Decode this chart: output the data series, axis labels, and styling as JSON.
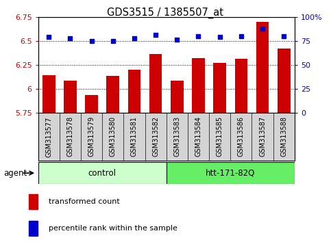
{
  "title": "GDS3515 / 1385507_at",
  "categories": [
    "GSM313577",
    "GSM313578",
    "GSM313579",
    "GSM313580",
    "GSM313581",
    "GSM313582",
    "GSM313583",
    "GSM313584",
    "GSM313585",
    "GSM313586",
    "GSM313587",
    "GSM313588"
  ],
  "bar_values": [
    6.14,
    6.08,
    5.93,
    6.13,
    6.2,
    6.36,
    6.08,
    6.32,
    6.27,
    6.31,
    6.7,
    6.42
  ],
  "scatter_values": [
    79,
    78,
    75,
    75,
    78,
    81,
    76,
    80,
    79,
    80,
    88,
    80
  ],
  "bar_color": "#cc0000",
  "scatter_color": "#0000cc",
  "ylim_left": [
    5.75,
    6.75
  ],
  "ylim_right": [
    0,
    100
  ],
  "yticks_left": [
    5.75,
    6.0,
    6.25,
    6.5,
    6.75
  ],
  "ytick_labels_left": [
    "5.75",
    "6",
    "6.25",
    "6.5",
    "6.75"
  ],
  "yticks_right": [
    0,
    25,
    50,
    75,
    100
  ],
  "ytick_labels_right": [
    "0",
    "25",
    "50",
    "75",
    "100%"
  ],
  "grid_values": [
    6.0,
    6.25,
    6.5
  ],
  "control_label": "control",
  "treatment_label": "htt-171-82Q",
  "agent_label": "agent",
  "legend_bar_label": "transformed count",
  "legend_scatter_label": "percentile rank within the sample",
  "bar_width": 0.6,
  "xticklabel_bg": "#d4d4d4",
  "control_color": "#ccffcc",
  "treatment_color": "#66ee66",
  "tick_label_color_left": "#cc0000",
  "tick_label_color_right": "#0000cc",
  "n_control": 6,
  "n_total": 12
}
